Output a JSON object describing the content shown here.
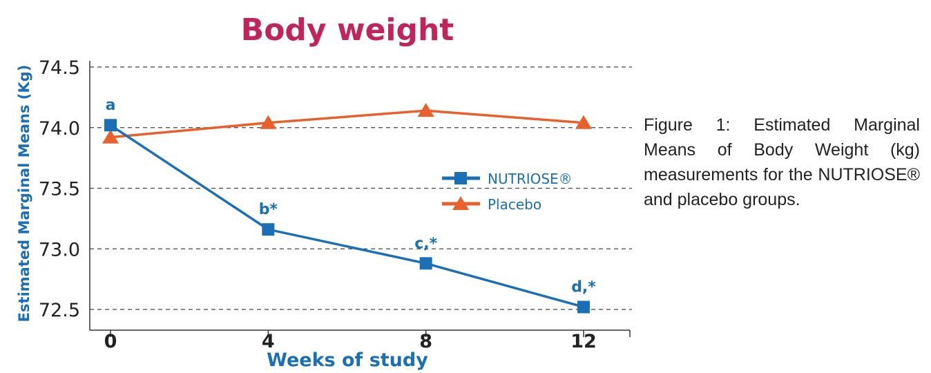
{
  "chart_data": {
    "type": "line",
    "title": "Body weight",
    "xlabel": "Weeks of study",
    "ylabel": "Estimated Marginal Means (Kg)",
    "x": [
      0,
      4,
      8,
      12
    ],
    "xticks": [
      "0",
      "4",
      "8",
      "12"
    ],
    "yticks": [
      "72.5",
      "73.0",
      "73.5",
      "74.0",
      "74.5"
    ],
    "ytick_values": [
      72.5,
      73.0,
      73.5,
      74.0,
      74.5
    ],
    "ylim": [
      72.5,
      74.5
    ],
    "grid": "horizontal dashed",
    "legend_position": "center-right",
    "series": [
      {
        "name": "NUTRIOSE®",
        "marker": "square",
        "color": "#1a6fb5",
        "values": [
          74.02,
          73.16,
          72.88,
          72.52
        ],
        "annotations": [
          "a",
          "b*",
          "c,*",
          "d,*"
        ]
      },
      {
        "name": "Placebo",
        "marker": "triangle",
        "color": "#e8602c",
        "values": [
          73.92,
          74.04,
          74.14,
          74.04
        ]
      }
    ],
    "title_color": "#c0245c"
  },
  "caption": "Figure 1: Estimated Marginal Means of Body Weight (kg) measurements for the NUTRIOSE® and placebo groups."
}
